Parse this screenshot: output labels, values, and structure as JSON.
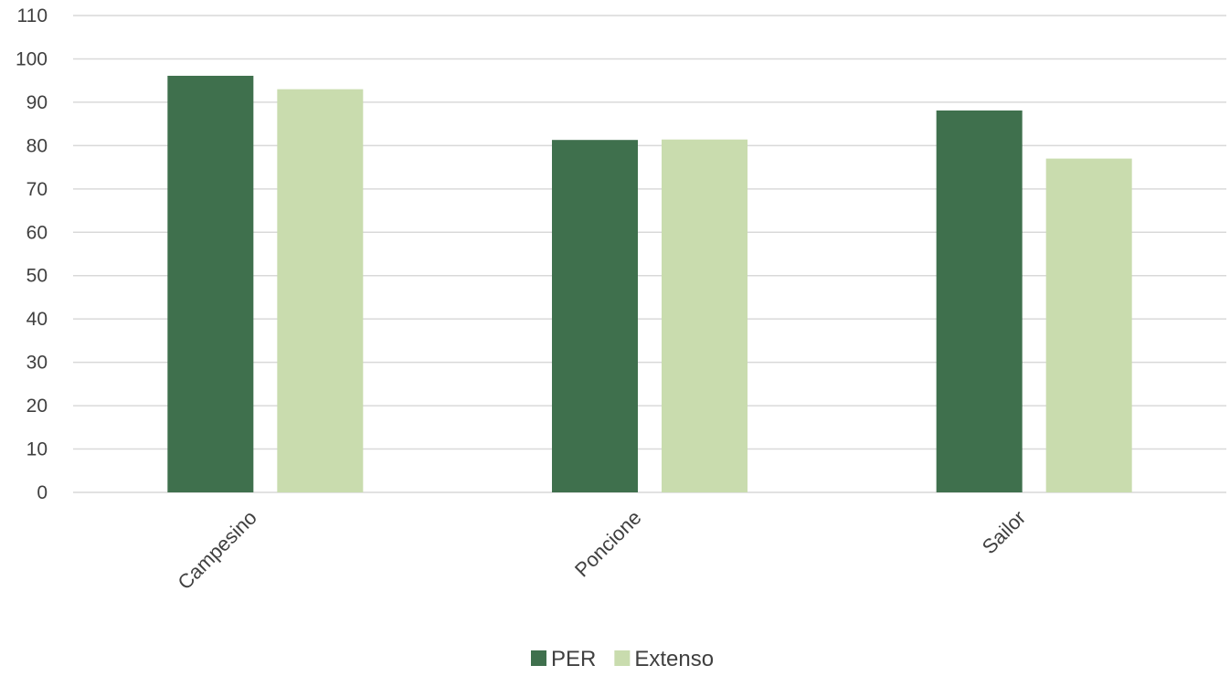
{
  "chart_data": {
    "type": "bar",
    "categories": [
      "Campesino",
      "Poncione",
      "Sailor"
    ],
    "series": [
      {
        "name": "PER",
        "values": [
          96.1,
          81.3,
          88.1
        ],
        "color": "#3f704d"
      },
      {
        "name": "Extenso",
        "values": [
          93.0,
          81.4,
          77.0
        ],
        "color": "#c9dcae"
      }
    ],
    "yticks": [
      "0",
      "10",
      "20",
      "30",
      "40",
      "50",
      "60",
      "70",
      "80",
      "90",
      "100",
      "110"
    ],
    "ylim": [
      0,
      110
    ],
    "grid": true,
    "legend_position": "bottom-center",
    "title": "",
    "xlabel": "",
    "ylabel": ""
  }
}
